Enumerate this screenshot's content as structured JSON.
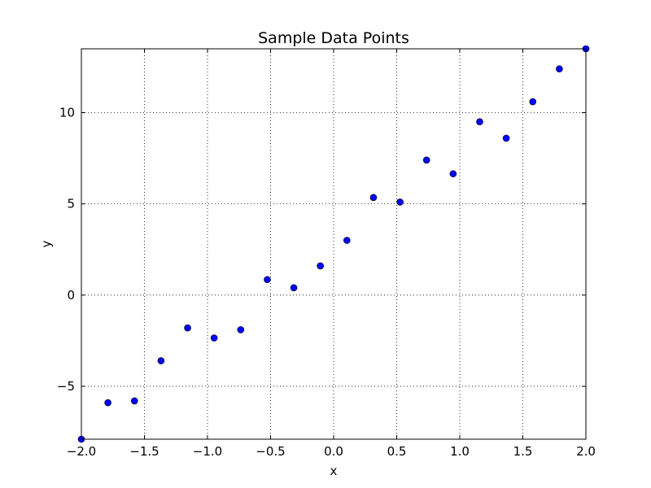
{
  "chart_data": {
    "type": "scatter",
    "title": "Sample Data Points",
    "xlabel": "x",
    "ylabel": "y",
    "xlim": [
      -2.0,
      2.0
    ],
    "ylim": [
      -7.9,
      13.5
    ],
    "x_ticks": [
      -2.0,
      -1.5,
      -1.0,
      -0.5,
      0.0,
      0.5,
      1.0,
      1.5,
      2.0
    ],
    "x_tick_labels": [
      "−2.0",
      "−1.5",
      "−1.0",
      "−0.5",
      "0.0",
      "0.5",
      "1.0",
      "1.5",
      "2.0"
    ],
    "y_ticks": [
      -5,
      0,
      5,
      10
    ],
    "y_tick_labels": [
      "−5",
      "0",
      "5",
      "10"
    ],
    "grid": true,
    "grid_style": "dotted",
    "marker_color": "#0000ff",
    "marker_edge_color": "#000000",
    "series": [
      {
        "x": [
          -2.0,
          -1.7895,
          -1.5789,
          -1.3684,
          -1.1579,
          -0.9474,
          -0.7368,
          -0.5263,
          -0.3158,
          -0.1053,
          0.1053,
          0.3158,
          0.5263,
          0.7368,
          0.9474,
          1.1579,
          1.3684,
          1.5789,
          1.7895,
          2.0
        ],
        "y": [
          -7.9,
          -5.9,
          -5.8,
          -3.6,
          -1.8,
          -2.35,
          -1.9,
          0.85,
          0.4,
          1.6,
          3.0,
          5.35,
          5.1,
          7.4,
          6.65,
          9.5,
          8.6,
          10.6,
          12.4,
          13.5
        ]
      }
    ]
  }
}
